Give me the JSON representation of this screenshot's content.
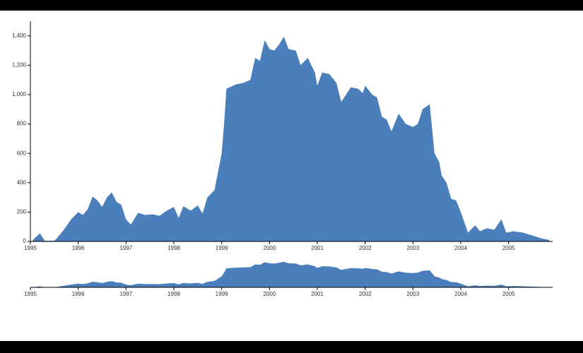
{
  "chart_data": {
    "type": "area",
    "color": "#4a7fbc",
    "x": [
      1995.05,
      1995.2,
      1995.3,
      1995.5,
      1995.55,
      1995.7,
      1995.85,
      1996.0,
      1996.1,
      1996.2,
      1996.3,
      1996.4,
      1996.5,
      1996.6,
      1996.7,
      1996.8,
      1996.9,
      1997.0,
      1997.1,
      1997.25,
      1997.4,
      1997.55,
      1997.7,
      1997.85,
      1998.0,
      1998.1,
      1998.2,
      1998.35,
      1998.5,
      1998.6,
      1998.7,
      1998.85,
      1999.0,
      1999.05,
      1999.1,
      1999.3,
      1999.45,
      1999.6,
      1999.7,
      1999.8,
      1999.9,
      2000.0,
      2000.1,
      2000.2,
      2000.3,
      2000.4,
      2000.55,
      2000.65,
      2000.8,
      2000.95,
      2001.0,
      2001.1,
      2001.25,
      2001.4,
      2001.5,
      2001.6,
      2001.7,
      2001.85,
      2001.95,
      2002.0,
      2002.15,
      2002.25,
      2002.35,
      2002.45,
      2002.55,
      2002.7,
      2002.85,
      2003.0,
      2003.1,
      2003.2,
      2003.35,
      2003.45,
      2003.55,
      2003.6,
      2003.7,
      2003.8,
      2003.9,
      2004.0,
      2004.15,
      2004.3,
      2004.4,
      2004.55,
      2004.7,
      2004.85,
      2004.95,
      2005.1,
      2005.3,
      2005.5,
      2005.7,
      2005.85
    ],
    "values": [
      10,
      55,
      5,
      5,
      20,
      80,
      150,
      200,
      180,
      220,
      305,
      280,
      235,
      300,
      335,
      270,
      250,
      150,
      115,
      195,
      180,
      185,
      175,
      210,
      235,
      160,
      240,
      210,
      245,
      190,
      300,
      350,
      600,
      800,
      1040,
      1070,
      1080,
      1100,
      1250,
      1230,
      1370,
      1310,
      1300,
      1340,
      1395,
      1310,
      1300,
      1200,
      1250,
      1150,
      1060,
      1150,
      1140,
      1080,
      950,
      1000,
      1050,
      1040,
      1010,
      1060,
      1000,
      980,
      850,
      830,
      750,
      870,
      800,
      780,
      800,
      900,
      935,
      600,
      540,
      450,
      400,
      290,
      280,
      200,
      60,
      110,
      70,
      90,
      80,
      150,
      60,
      70,
      60,
      40,
      20,
      10
    ],
    "xlim": [
      1995,
      2005.92
    ],
    "xticks": [
      1995,
      1996,
      1997,
      1998,
      1999,
      2000,
      2001,
      2002,
      2003,
      2004,
      2005
    ],
    "ylim": [
      0,
      1500
    ],
    "yticks": [
      0,
      200,
      400,
      600,
      800,
      {
        "value": 1000,
        "label": "1,000"
      },
      {
        "value": 1200,
        "label": "1,200"
      },
      {
        "value": 1400,
        "label": "1,400"
      }
    ]
  }
}
